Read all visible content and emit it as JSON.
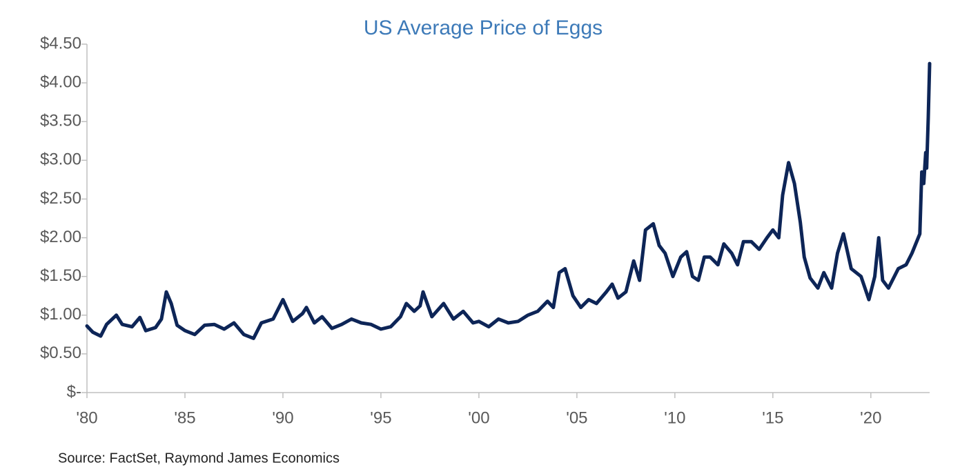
{
  "chart_data": {
    "type": "line",
    "title": "US Average Price of Eggs",
    "source": "Source: FactSet, Raymond James Economics",
    "color": "#0d2557",
    "x": [
      1980,
      1980.3,
      1980.7,
      1981,
      1981.5,
      1981.8,
      1982.3,
      1982.7,
      1983,
      1983.5,
      1983.8,
      1984.05,
      1984.3,
      1984.6,
      1985,
      1985.5,
      1986,
      1986.5,
      1987,
      1987.5,
      1988,
      1988.5,
      1988.9,
      1989.5,
      1990,
      1990.5,
      1991,
      1991.2,
      1991.6,
      1992,
      1992.5,
      1993,
      1993.5,
      1994,
      1994.5,
      1995,
      1995.5,
      1996,
      1996.3,
      1996.7,
      1997,
      1997.15,
      1997.6,
      1998.2,
      1998.7,
      1999.2,
      1999.7,
      2000,
      2000.5,
      2001,
      2001.5,
      2002,
      2002.5,
      2003,
      2003.5,
      2003.8,
      2004.1,
      2004.4,
      2004.8,
      2005.2,
      2005.6,
      2006,
      2006.5,
      2006.8,
      2007.1,
      2007.5,
      2007.9,
      2008.2,
      2008.5,
      2008.9,
      2009.2,
      2009.5,
      2009.9,
      2010.3,
      2010.6,
      2010.9,
      2011.2,
      2011.5,
      2011.8,
      2012.2,
      2012.5,
      2012.9,
      2013.2,
      2013.5,
      2013.9,
      2014.3,
      2014.7,
      2015,
      2015.3,
      2015.5,
      2015.8,
      2016.1,
      2016.4,
      2016.6,
      2016.9,
      2017.3,
      2017.6,
      2018,
      2018.3,
      2018.6,
      2019,
      2019.5,
      2019.9,
      2020.2,
      2020.4,
      2020.6,
      2020.9,
      2021.4,
      2021.8,
      2022.1,
      2022.5,
      2022.6,
      2022.7,
      2022.8,
      2022.85,
      2022.93,
      2023
    ],
    "values": [
      0.86,
      0.78,
      0.73,
      0.88,
      1.0,
      0.88,
      0.85,
      0.97,
      0.8,
      0.84,
      0.95,
      1.3,
      1.15,
      0.87,
      0.8,
      0.75,
      0.87,
      0.88,
      0.82,
      0.9,
      0.75,
      0.7,
      0.9,
      0.95,
      1.2,
      0.92,
      1.02,
      1.1,
      0.9,
      0.98,
      0.83,
      0.88,
      0.95,
      0.9,
      0.88,
      0.82,
      0.85,
      0.98,
      1.15,
      1.05,
      1.12,
      1.3,
      0.98,
      1.15,
      0.95,
      1.05,
      0.9,
      0.92,
      0.85,
      0.95,
      0.9,
      0.92,
      1.0,
      1.05,
      1.18,
      1.1,
      1.55,
      1.6,
      1.25,
      1.1,
      1.2,
      1.15,
      1.3,
      1.4,
      1.22,
      1.3,
      1.7,
      1.45,
      2.1,
      2.18,
      1.9,
      1.8,
      1.5,
      1.75,
      1.82,
      1.5,
      1.45,
      1.75,
      1.75,
      1.65,
      1.92,
      1.8,
      1.65,
      1.95,
      1.95,
      1.85,
      2.0,
      2.1,
      2.0,
      2.55,
      2.97,
      2.7,
      2.2,
      1.75,
      1.48,
      1.35,
      1.55,
      1.35,
      1.8,
      2.05,
      1.6,
      1.5,
      1.2,
      1.5,
      2.0,
      1.45,
      1.35,
      1.6,
      1.65,
      1.8,
      2.05,
      2.85,
      2.7,
      3.1,
      2.9,
      3.55,
      4.25
    ],
    "xlim": [
      1980,
      2023
    ],
    "xticks": [
      {
        "value": 1980,
        "label": "'80"
      },
      {
        "value": 1985,
        "label": "'85"
      },
      {
        "value": 1990,
        "label": "'90"
      },
      {
        "value": 1995,
        "label": "'95"
      },
      {
        "value": 2000,
        "label": "'00"
      },
      {
        "value": 2005,
        "label": "'05"
      },
      {
        "value": 2010,
        "label": "'10"
      },
      {
        "value": 2015,
        "label": "'15"
      },
      {
        "value": 2020,
        "label": "'20"
      }
    ],
    "ylim": [
      0,
      4.5
    ],
    "yticks": [
      {
        "value": 0,
        "label": "$-"
      },
      {
        "value": 0.5,
        "label": "$0.50"
      },
      {
        "value": 1,
        "label": "$1.00"
      },
      {
        "value": 1.5,
        "label": "$1.50"
      },
      {
        "value": 2,
        "label": "$2.00"
      },
      {
        "value": 2.5,
        "label": "$2.50"
      },
      {
        "value": 3,
        "label": "$3.00"
      },
      {
        "value": 3.5,
        "label": "$3.50"
      },
      {
        "value": 4,
        "label": "$4.00"
      },
      {
        "value": 4.5,
        "label": "$4.50"
      }
    ]
  }
}
